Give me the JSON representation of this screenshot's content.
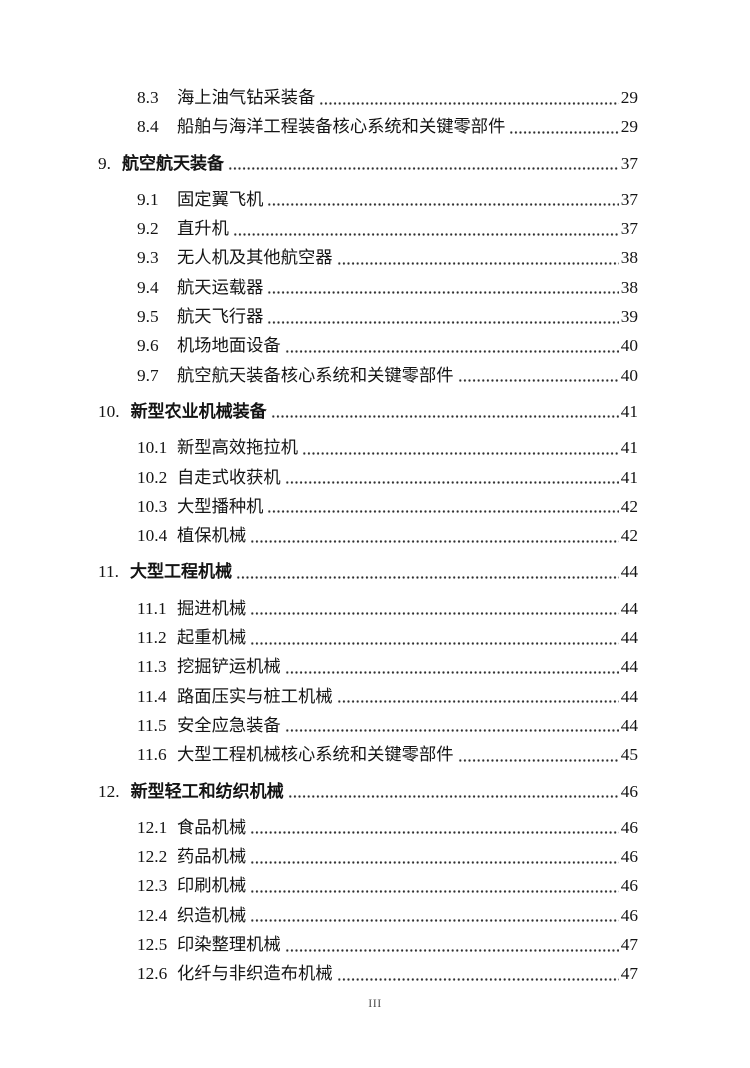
{
  "page": {
    "footer_page_number": "III"
  },
  "toc": {
    "entries": [
      {
        "number": "8.3",
        "title": "海上油气钻采装备",
        "page": "29",
        "level": 2
      },
      {
        "number": "8.4",
        "title": "船舶与海洋工程装备核心系统和关键零部件",
        "page": "29",
        "level": 2
      },
      {
        "number": "9.",
        "title": "航空航天装备",
        "page": "37",
        "level": 1
      },
      {
        "number": "9.1",
        "title": "固定翼飞机",
        "page": "37",
        "level": 2
      },
      {
        "number": "9.2",
        "title": "直升机",
        "page": "37",
        "level": 2
      },
      {
        "number": "9.3",
        "title": "无人机及其他航空器",
        "page": "38",
        "level": 2
      },
      {
        "number": "9.4",
        "title": "航天运载器",
        "page": "38",
        "level": 2
      },
      {
        "number": "9.5",
        "title": "航天飞行器",
        "page": "39",
        "level": 2
      },
      {
        "number": "9.6",
        "title": "机场地面设备",
        "page": "40",
        "level": 2
      },
      {
        "number": "9.7",
        "title": "航空航天装备核心系统和关键零部件",
        "page": "40",
        "level": 2
      },
      {
        "number": "10.",
        "title": "新型农业机械装备",
        "page": "41",
        "level": 1
      },
      {
        "number": "10.1",
        "title": "新型高效拖拉机",
        "page": "41",
        "level": 2
      },
      {
        "number": "10.2",
        "title": "自走式收获机",
        "page": "41",
        "level": 2
      },
      {
        "number": "10.3",
        "title": "大型播种机",
        "page": "42",
        "level": 2
      },
      {
        "number": "10.4",
        "title": "植保机械",
        "page": "42",
        "level": 2
      },
      {
        "number": "11.",
        "title": "大型工程机械",
        "page": "44",
        "level": 1
      },
      {
        "number": "11.1",
        "title": "掘进机械",
        "page": "44",
        "level": 2
      },
      {
        "number": "11.2",
        "title": "起重机械",
        "page": "44",
        "level": 2
      },
      {
        "number": "11.3",
        "title": "挖掘铲运机械",
        "page": "44",
        "level": 2
      },
      {
        "number": "11.4",
        "title": "路面压实与桩工机械",
        "page": "44",
        "level": 2
      },
      {
        "number": "11.5",
        "title": "安全应急装备",
        "page": "44",
        "level": 2
      },
      {
        "number": "11.6",
        "title": "大型工程机械核心系统和关键零部件",
        "page": "45",
        "level": 2
      },
      {
        "number": "12.",
        "title": "新型轻工和纺织机械",
        "page": "46",
        "level": 1
      },
      {
        "number": "12.1",
        "title": "食品机械",
        "page": "46",
        "level": 2
      },
      {
        "number": "12.2",
        "title": "药品机械",
        "page": "46",
        "level": 2
      },
      {
        "number": "12.3",
        "title": "印刷机械",
        "page": "46",
        "level": 2
      },
      {
        "number": "12.4",
        "title": "织造机械",
        "page": "46",
        "level": 2
      },
      {
        "number": "12.5",
        "title": "印染整理机械",
        "page": "47",
        "level": 2
      },
      {
        "number": "12.6",
        "title": "化纤与非织造布机械",
        "page": "47",
        "level": 2
      }
    ]
  }
}
